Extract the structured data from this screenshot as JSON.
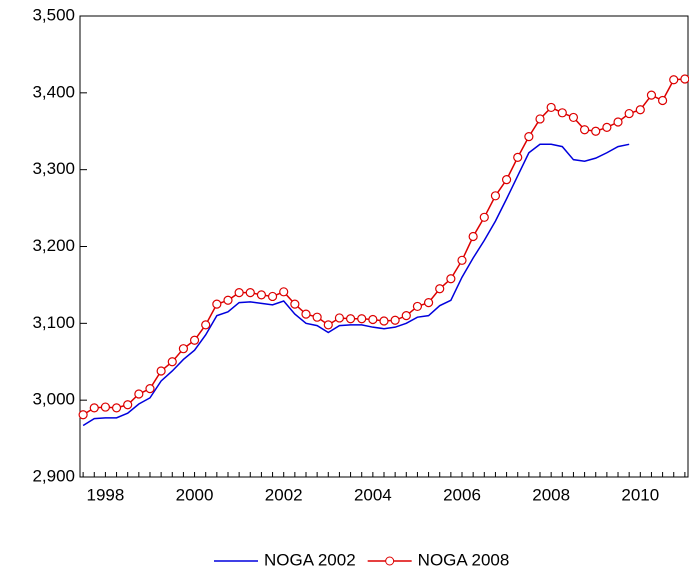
{
  "chart_data": {
    "type": "line",
    "x": [
      1998,
      1998.25,
      1998.5,
      1998.75,
      1999,
      1999.25,
      1999.5,
      1999.75,
      2000,
      2000.25,
      2000.5,
      2000.75,
      2001,
      2001.25,
      2001.5,
      2001.75,
      2002,
      2002.25,
      2002.5,
      2002.75,
      2003,
      2003.25,
      2003.5,
      2003.75,
      2004,
      2004.25,
      2004.5,
      2004.75,
      2005,
      2005.25,
      2005.5,
      2005.75,
      2006,
      2006.25,
      2006.5,
      2006.75,
      2007,
      2007.25,
      2007.5,
      2007.75,
      2008,
      2008.25,
      2008.5,
      2008.75,
      2009,
      2009.25,
      2009.5,
      2009.75,
      2010,
      2010.25,
      2010.5,
      2010.75,
      2011,
      2011.25,
      2011.5
    ],
    "series": [
      {
        "name": "NOGA 2002",
        "color": "#0000dd",
        "markers": false,
        "values": [
          2967,
          2976,
          2977,
          2977,
          2983,
          2995,
          3003,
          3025,
          3038,
          3053,
          3065,
          3085,
          3110,
          3115,
          3127,
          3128,
          3126,
          3124,
          3129,
          3112,
          3100,
          3097,
          3088,
          3097,
          3098,
          3098,
          3095,
          3093,
          3095,
          3100,
          3108,
          3110,
          3123,
          3130,
          3160,
          3185,
          3208,
          3233,
          3262,
          3292,
          3322,
          3333,
          3333,
          3330,
          3313,
          3311,
          3315,
          3322,
          3330,
          3333,
          null,
          null,
          null,
          null,
          null
        ]
      },
      {
        "name": "NOGA 2008",
        "color": "#dd0000",
        "markers": true,
        "values": [
          2981,
          2990,
          2991,
          2990,
          2994,
          3008,
          3015,
          3038,
          3050,
          3067,
          3078,
          3098,
          3125,
          3130,
          3140,
          3140,
          3137,
          3135,
          3141,
          3125,
          3112,
          3108,
          3098,
          3107,
          3106,
          3106,
          3105,
          3103,
          3104,
          3110,
          3122,
          3127,
          3145,
          3158,
          3182,
          3213,
          3238,
          3266,
          3287,
          3316,
          3343,
          3366,
          3381,
          3374,
          3368,
          3352,
          3350,
          3355,
          3362,
          3373,
          3378,
          3397,
          3390,
          3417,
          3418
        ]
      }
    ],
    "xlim": [
      1997.93,
      2011.57
    ],
    "xticks": [
      {
        "value": 1998.5,
        "label": "1998"
      },
      {
        "value": 2000.5,
        "label": "2000"
      },
      {
        "value": 2002.5,
        "label": "2002"
      },
      {
        "value": 2004.5,
        "label": "2004"
      },
      {
        "value": 2006.5,
        "label": "2006"
      },
      {
        "value": 2008.5,
        "label": "2008"
      },
      {
        "value": 2010.5,
        "label": "2010"
      }
    ],
    "ylim": [
      2900,
      3500
    ],
    "yticks": [
      {
        "value": 2900,
        "label": "2,900"
      },
      {
        "value": 3000,
        "label": "3,000"
      },
      {
        "value": 3100,
        "label": "3,100"
      },
      {
        "value": 3200,
        "label": "3,200"
      },
      {
        "value": 3300,
        "label": "3,300"
      },
      {
        "value": 3400,
        "label": "3,400"
      },
      {
        "value": 3500,
        "label": "3,500"
      }
    ],
    "grid": false,
    "legend": "bottom"
  }
}
